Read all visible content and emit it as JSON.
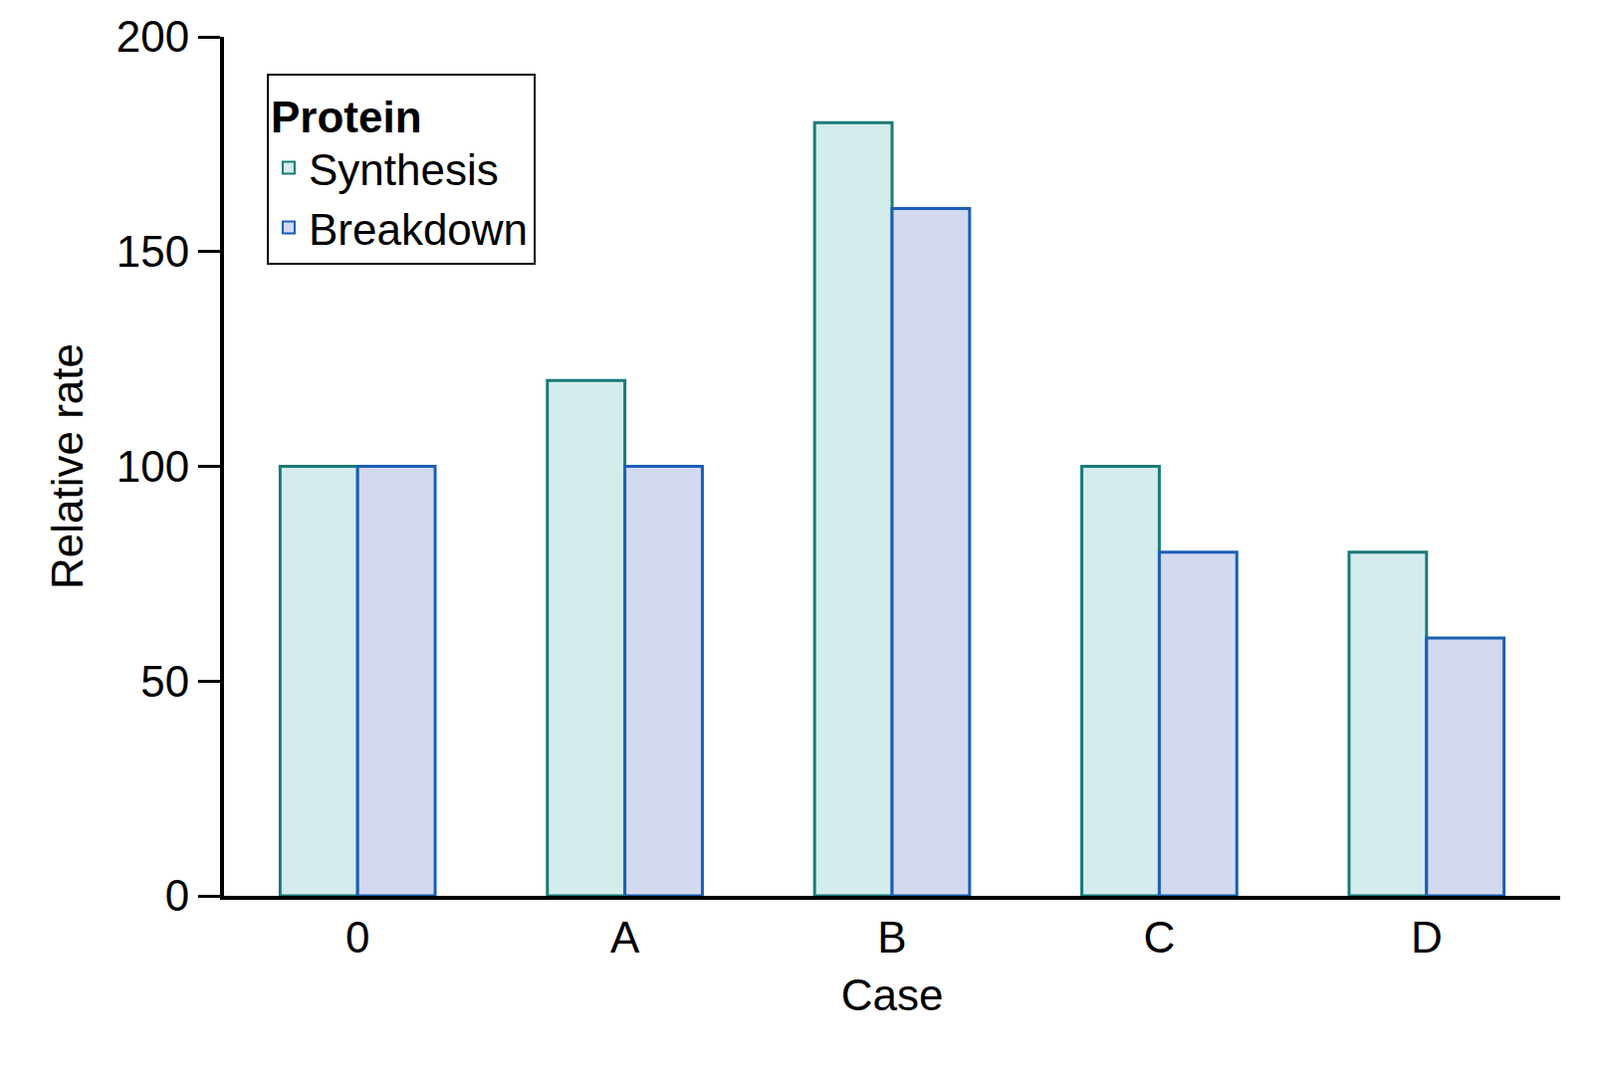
{
  "chart_data": {
    "type": "bar",
    "categories": [
      "0",
      "A",
      "B",
      "C",
      "D"
    ],
    "series": [
      {
        "name": "Synthesis",
        "color": "#d4ecec",
        "values": [
          100,
          120,
          180,
          100,
          80
        ]
      },
      {
        "name": "Breakdown",
        "color": "#d3d9ef",
        "values": [
          100,
          100,
          160,
          80,
          60
        ]
      }
    ],
    "x_label": "Case",
    "y_label": "Relative rate",
    "legend_title": "Protein",
    "legend": "top left",
    "ylim": [
      0,
      200
    ],
    "yticks": [
      0,
      50,
      100,
      150,
      200
    ],
    "grid": false
  }
}
